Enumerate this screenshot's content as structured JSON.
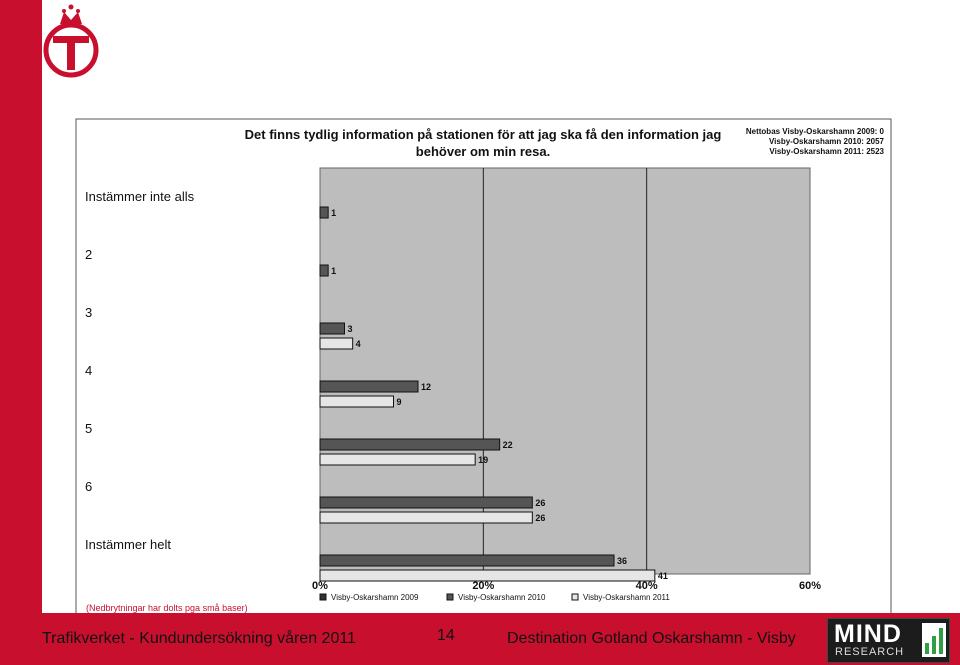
{
  "footer": {
    "left": "Trafikverket - Kundundersökning våren 2011",
    "page": "14",
    "right": "Destination Gotland Oskarshamn - Visby"
  },
  "logo": {
    "brand": "MIND",
    "sub": "RESEARCH",
    "icon": "trafikverket-crown-logo"
  },
  "colors": {
    "accent": "#c8102e",
    "plot_bg": "#bdbdbd",
    "series_2009": "#333333",
    "series_2010": "#555555",
    "series_2011": "#e6e6e6"
  },
  "chart_data": {
    "type": "bar",
    "orientation": "horizontal",
    "title": "Det finns tydlig information på stationen för att jag ska få den information jag behöver om min resa.",
    "base_lines": [
      "Nettobas  Visby-Oskarshamn 2009: 0",
      "Visby-Oskarshamn 2010: 2057",
      "Visby-Oskarshamn 2011: 2523"
    ],
    "categories": [
      "Instämmer inte alls",
      "2",
      "3",
      "4",
      "5",
      "6",
      "Instämmer helt"
    ],
    "series": [
      {
        "name": "Visby-Oskarshamn 2009",
        "values": [
          null,
          null,
          null,
          null,
          null,
          null,
          null
        ]
      },
      {
        "name": "Visby-Oskarshamn 2010",
        "values": [
          1,
          1,
          3,
          12,
          22,
          26,
          36
        ]
      },
      {
        "name": "Visby-Oskarshamn 2011",
        "values": [
          null,
          null,
          4,
          9,
          19,
          26,
          41
        ]
      }
    ],
    "x_ticks": [
      "0%",
      "20%",
      "40%",
      "60%"
    ],
    "xlim": [
      0,
      60
    ],
    "note": "(Nedbrytningar har dolts pga små baser)",
    "legend_position": "bottom",
    "grid": true
  }
}
